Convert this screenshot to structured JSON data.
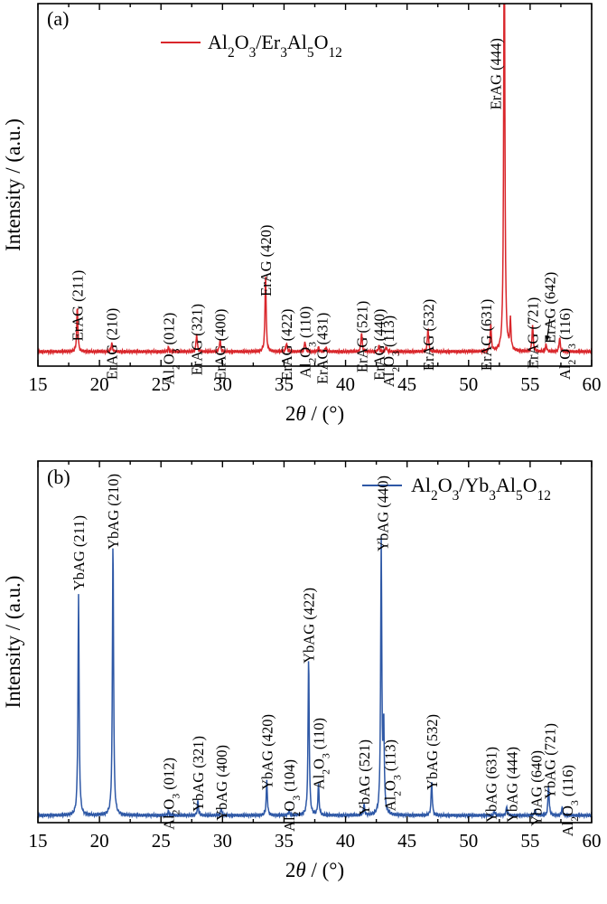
{
  "chart_data": [
    {
      "type": "line",
      "panel_label": "(a)",
      "xlabel_prefix": "2",
      "xlabel_theta": "θ",
      "xlabel_unit": " / (°)",
      "ylabel": "Intensity / (a.u.)",
      "xlim": [
        15,
        60
      ],
      "xticks": [
        "15",
        "20",
        "25",
        "30",
        "35",
        "40",
        "45",
        "50",
        "55",
        "60"
      ],
      "grid": false,
      "legend_position": "top-center",
      "color": "#d9262b",
      "series": [
        {
          "name": "Al2O3/Er3Al5O12",
          "baseline": 0.04,
          "peaks": [
            {
              "x": 18.2,
              "h": 0.125
            },
            {
              "x": 21.0,
              "h": 0.025
            },
            {
              "x": 25.6,
              "h": 0.012
            },
            {
              "x": 27.9,
              "h": 0.05
            },
            {
              "x": 29.8,
              "h": 0.035
            },
            {
              "x": 33.5,
              "h": 0.215
            },
            {
              "x": 35.2,
              "h": 0.025
            },
            {
              "x": 36.7,
              "h": 0.03
            },
            {
              "x": 37.8,
              "h": 0.012
            },
            {
              "x": 38.4,
              "h": 0.012
            },
            {
              "x": 41.3,
              "h": 0.055
            },
            {
              "x": 42.7,
              "h": 0.015
            },
            {
              "x": 43.3,
              "h": 0.012
            },
            {
              "x": 46.7,
              "h": 0.068
            },
            {
              "x": 51.8,
              "h": 0.075
            },
            {
              "x": 52.9,
              "h": 1.25
            },
            {
              "x": 53.4,
              "h": 0.08
            },
            {
              "x": 55.2,
              "h": 0.075
            },
            {
              "x": 56.3,
              "h": 0.02
            },
            {
              "x": 57.4,
              "h": 0.04
            }
          ]
        }
      ],
      "annotations": [
        {
          "x": 18.2,
          "label": "ErAG (211)",
          "y_top": 0.265
        },
        {
          "x": 21.0,
          "label": "ErAG (210)",
          "y_top": 0.16
        },
        {
          "x": 25.6,
          "label": "Al₂O₃ (012)",
          "y_top": 0.148
        },
        {
          "x": 27.9,
          "label": "ErAG (321)",
          "y_top": 0.172
        },
        {
          "x": 29.8,
          "label": "ErAG (400)",
          "y_top": 0.158
        },
        {
          "x": 33.5,
          "label": "ErAG (420)",
          "y_top": 0.39
        },
        {
          "x": 35.2,
          "label": "ErAG (422)",
          "y_top": 0.158
        },
        {
          "x": 36.7,
          "label": "Al₂O₃ (110)",
          "y_top": 0.165
        },
        {
          "x": 38.1,
          "label": "ErAG (431)",
          "y_top": 0.148
        },
        {
          "x": 41.3,
          "label": "ErAG (521)",
          "y_top": 0.18
        },
        {
          "x": 42.7,
          "label": "ErAG (440)",
          "y_top": 0.158
        },
        {
          "x": 43.5,
          "label": "Al₂O₃ (113)",
          "y_top": 0.14
        },
        {
          "x": 46.7,
          "label": "ErAG (532)",
          "y_top": 0.185
        },
        {
          "x": 51.4,
          "label": "ErAG (631)",
          "y_top": 0.185
        },
        {
          "x": 52.2,
          "label": "ErAG (444)",
          "y_top": 0.905
        },
        {
          "x": 55.2,
          "label": "ErAG (721)",
          "y_top": 0.19
        },
        {
          "x": 56.6,
          "label": "ErAG (642)",
          "y_top": 0.26
        },
        {
          "x": 57.8,
          "label": "Al₂O₃ (116)",
          "y_top": 0.16
        }
      ],
      "arrow": {
        "x_from": 56.6,
        "x_to": 56.35
      }
    },
    {
      "type": "line",
      "panel_label": "(b)",
      "xlabel_prefix": "2",
      "xlabel_theta": "θ",
      "xlabel_unit": " / (°)",
      "ylabel": "Intensity / (a.u.)",
      "xlim": [
        15,
        60
      ],
      "xticks": [
        "15",
        "20",
        "25",
        "30",
        "35",
        "40",
        "45",
        "50",
        "55",
        "60"
      ],
      "grid": false,
      "legend_position": "top-right",
      "color": "#2e58a6",
      "series": [
        {
          "name": "Al2O3/Yb3Al5O12",
          "baseline": 0.02,
          "peaks": [
            {
              "x": 18.3,
              "h": 0.61
            },
            {
              "x": 21.1,
              "h": 0.765
            },
            {
              "x": 25.6,
              "h": 0.012
            },
            {
              "x": 28.0,
              "h": 0.04
            },
            {
              "x": 29.9,
              "h": 0.02
            },
            {
              "x": 33.6,
              "h": 0.095
            },
            {
              "x": 35.4,
              "h": 0.012
            },
            {
              "x": 37.0,
              "h": 0.44
            },
            {
              "x": 37.8,
              "h": 0.085
            },
            {
              "x": 41.5,
              "h": 0.03
            },
            {
              "x": 42.9,
              "h": 0.75
            },
            {
              "x": 43.1,
              "h": 0.24
            },
            {
              "x": 47.0,
              "h": 0.095
            },
            {
              "x": 52.1,
              "h": 0.012
            },
            {
              "x": 53.1,
              "h": 0.025
            },
            {
              "x": 55.4,
              "h": 0.015
            },
            {
              "x": 56.5,
              "h": 0.085
            },
            {
              "x": 57.6,
              "h": 0.022
            }
          ]
        }
      ],
      "annotations": [
        {
          "x": 18.3,
          "label": "YbAG (211)",
          "y_top": 0.85
        },
        {
          "x": 21.1,
          "label": "YbAG (210)",
          "y_top": 0.965
        },
        {
          "x": 25.6,
          "label": "Al₂O₃ (012)",
          "y_top": 0.18
        },
        {
          "x": 28.0,
          "label": "YbAG (321)",
          "y_top": 0.24
        },
        {
          "x": 29.9,
          "label": "YbAG (400)",
          "y_top": 0.215
        },
        {
          "x": 33.6,
          "label": "YbAG (420)",
          "y_top": 0.3
        },
        {
          "x": 35.4,
          "label": "Al₂O₃ (104)",
          "y_top": 0.175
        },
        {
          "x": 37.0,
          "label": "YbAG (422)",
          "y_top": 0.65
        },
        {
          "x": 37.8,
          "label": "Al₂O₃ (110)",
          "y_top": 0.29
        },
        {
          "x": 41.5,
          "label": "YbAG (521)",
          "y_top": 0.23
        },
        {
          "x": 43.0,
          "label": "YbAG (440)",
          "y_top": 0.96
        },
        {
          "x": 43.6,
          "label": "Al₂O₃ (113)",
          "y_top": 0.23
        },
        {
          "x": 47.0,
          "label": "YbAG (532)",
          "y_top": 0.3
        },
        {
          "x": 51.8,
          "label": "YbAG (631)",
          "y_top": 0.21
        },
        {
          "x": 53.5,
          "label": "YbAG (444)",
          "y_top": 0.21
        },
        {
          "x": 55.5,
          "label": "YbAG (640)",
          "y_top": 0.2
        },
        {
          "x": 56.6,
          "label": "YbAG (721)",
          "y_top": 0.275
        },
        {
          "x": 58.0,
          "label": "Al₂O₃ (116)",
          "y_top": 0.16
        }
      ]
    }
  ]
}
